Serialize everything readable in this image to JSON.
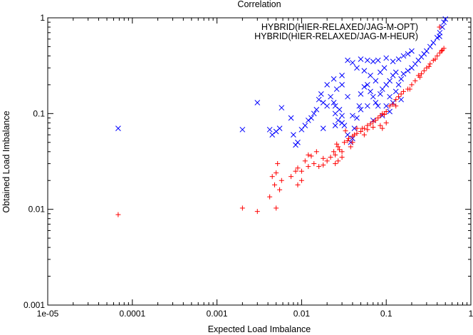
{
  "chart_data": {
    "type": "scatter",
    "title": "Correlation",
    "xlabel": "Expected Load Imbalance",
    "ylabel": "Obtained Load Imbalance",
    "xscale": "log",
    "yscale": "log",
    "xlim": [
      1e-05,
      1
    ],
    "ylim": [
      0.001,
      1
    ],
    "x_ticks": [
      1e-05,
      0.0001,
      0.001,
      0.01,
      0.1,
      1
    ],
    "x_tick_labels": [
      "1e-05",
      "0.0001",
      "0.001",
      "0.01",
      "0.1",
      "1"
    ],
    "y_ticks": [
      0.001,
      0.01,
      0.1,
      1
    ],
    "y_tick_labels": [
      "0.001",
      "0.01",
      "0.1",
      "1"
    ],
    "grid": false,
    "legend_position": "top-right",
    "series": [
      {
        "name": "HYBRID(HIER-RELAXED/JAG-M-OPT)",
        "marker": "plus",
        "color": "#ff0000",
        "points": [
          [
            6.8e-05,
            0.0088
          ],
          [
            0.002,
            0.0103
          ],
          [
            0.003,
            0.0095
          ],
          [
            0.005,
            0.0103
          ],
          [
            0.0042,
            0.0135
          ],
          [
            0.0055,
            0.016
          ],
          [
            0.0048,
            0.018
          ],
          [
            0.0058,
            0.02
          ],
          [
            0.005,
            0.024
          ],
          [
            0.0052,
            0.03
          ],
          [
            0.0045,
            0.022
          ],
          [
            0.009,
            0.018
          ],
          [
            0.01,
            0.02
          ],
          [
            0.0075,
            0.022
          ],
          [
            0.0085,
            0.025
          ],
          [
            0.01,
            0.025
          ],
          [
            0.009,
            0.027
          ],
          [
            0.012,
            0.028
          ],
          [
            0.011,
            0.032
          ],
          [
            0.013,
            0.036
          ],
          [
            0.012,
            0.037
          ],
          [
            0.015,
            0.04
          ],
          [
            0.018,
            0.029
          ],
          [
            0.02,
            0.032
          ],
          [
            0.022,
            0.035
          ],
          [
            0.025,
            0.037
          ],
          [
            0.024,
            0.04
          ],
          [
            0.028,
            0.042
          ],
          [
            0.03,
            0.04
          ],
          [
            0.027,
            0.045
          ],
          [
            0.026,
            0.048
          ],
          [
            0.032,
            0.05
          ],
          [
            0.035,
            0.052
          ],
          [
            0.036,
            0.055
          ],
          [
            0.04,
            0.058
          ],
          [
            0.042,
            0.06
          ],
          [
            0.045,
            0.062
          ],
          [
            0.05,
            0.065
          ],
          [
            0.052,
            0.07
          ],
          [
            0.055,
            0.07
          ],
          [
            0.06,
            0.075
          ],
          [
            0.065,
            0.078
          ],
          [
            0.07,
            0.082
          ],
          [
            0.075,
            0.085
          ],
          [
            0.08,
            0.09
          ],
          [
            0.085,
            0.095
          ],
          [
            0.09,
            0.1
          ],
          [
            0.1,
            0.105
          ],
          [
            0.11,
            0.12
          ],
          [
            0.12,
            0.125
          ],
          [
            0.13,
            0.14
          ],
          [
            0.14,
            0.15
          ],
          [
            0.15,
            0.16
          ],
          [
            0.16,
            0.17
          ],
          [
            0.18,
            0.18
          ],
          [
            0.2,
            0.2
          ],
          [
            0.22,
            0.22
          ],
          [
            0.24,
            0.25
          ],
          [
            0.26,
            0.26
          ],
          [
            0.28,
            0.28
          ],
          [
            0.3,
            0.3
          ],
          [
            0.33,
            0.33
          ],
          [
            0.36,
            0.36
          ],
          [
            0.4,
            0.4
          ],
          [
            0.43,
            0.43
          ],
          [
            0.46,
            0.46
          ],
          [
            0.48,
            0.48
          ],
          [
            0.45,
            0.45
          ],
          [
            0.38,
            0.37
          ],
          [
            0.32,
            0.31
          ],
          [
            0.25,
            0.24
          ],
          [
            0.19,
            0.18
          ],
          [
            0.13,
            0.12
          ],
          [
            0.095,
            0.098
          ],
          [
            0.06,
            0.068
          ],
          [
            0.033,
            0.066
          ],
          [
            0.045,
            0.07
          ],
          [
            0.025,
            0.03
          ],
          [
            0.018,
            0.034
          ],
          [
            0.016,
            0.028
          ],
          [
            0.014,
            0.03
          ],
          [
            0.09,
            0.07
          ],
          [
            0.085,
            0.075
          ],
          [
            0.1,
            0.08
          ],
          [
            0.07,
            0.072
          ],
          [
            0.055,
            0.06
          ],
          [
            0.03,
            0.035
          ],
          [
            0.027,
            0.032
          ],
          [
            0.04,
            0.05
          ],
          [
            0.038,
            0.045
          ]
        ]
      },
      {
        "name": "HYBRID(HIER-RELAXED/JAG-M-HEUR)",
        "marker": "cross",
        "color": "#0000ff",
        "points": [
          [
            6.8e-05,
            0.07
          ],
          [
            0.002,
            0.068
          ],
          [
            0.003,
            0.13
          ],
          [
            0.0042,
            0.068
          ],
          [
            0.0045,
            0.06
          ],
          [
            0.005,
            0.065
          ],
          [
            0.0055,
            0.07
          ],
          [
            0.0058,
            0.115
          ],
          [
            0.0075,
            0.09
          ],
          [
            0.008,
            0.06
          ],
          [
            0.0085,
            0.047
          ],
          [
            0.009,
            0.05
          ],
          [
            0.01,
            0.068
          ],
          [
            0.011,
            0.075
          ],
          [
            0.012,
            0.085
          ],
          [
            0.013,
            0.09
          ],
          [
            0.014,
            0.1
          ],
          [
            0.015,
            0.11
          ],
          [
            0.016,
            0.14
          ],
          [
            0.018,
            0.13
          ],
          [
            0.02,
            0.12
          ],
          [
            0.022,
            0.15
          ],
          [
            0.024,
            0.13
          ],
          [
            0.025,
            0.1
          ],
          [
            0.027,
            0.085
          ],
          [
            0.028,
            0.11
          ],
          [
            0.03,
            0.095
          ],
          [
            0.032,
            0.075
          ],
          [
            0.035,
            0.06
          ],
          [
            0.038,
            0.05
          ],
          [
            0.04,
            0.055
          ],
          [
            0.042,
            0.07
          ],
          [
            0.045,
            0.09
          ],
          [
            0.048,
            0.12
          ],
          [
            0.05,
            0.16
          ],
          [
            0.055,
            0.19
          ],
          [
            0.06,
            0.2
          ],
          [
            0.065,
            0.17
          ],
          [
            0.07,
            0.15
          ],
          [
            0.075,
            0.13
          ],
          [
            0.08,
            0.12
          ],
          [
            0.085,
            0.16
          ],
          [
            0.09,
            0.18
          ],
          [
            0.1,
            0.2
          ],
          [
            0.11,
            0.22
          ],
          [
            0.12,
            0.25
          ],
          [
            0.13,
            0.27
          ],
          [
            0.14,
            0.2
          ],
          [
            0.15,
            0.23
          ],
          [
            0.16,
            0.26
          ],
          [
            0.18,
            0.28
          ],
          [
            0.2,
            0.3
          ],
          [
            0.22,
            0.33
          ],
          [
            0.24,
            0.36
          ],
          [
            0.26,
            0.39
          ],
          [
            0.28,
            0.42
          ],
          [
            0.3,
            0.45
          ],
          [
            0.33,
            0.5
          ],
          [
            0.36,
            0.55
          ],
          [
            0.4,
            0.62
          ],
          [
            0.43,
            0.7
          ],
          [
            0.46,
            0.8
          ],
          [
            0.48,
            0.9
          ],
          [
            0.5,
            0.97
          ],
          [
            0.12,
            0.35
          ],
          [
            0.14,
            0.37
          ],
          [
            0.16,
            0.4
          ],
          [
            0.18,
            0.42
          ],
          [
            0.2,
            0.45
          ],
          [
            0.1,
            0.38
          ],
          [
            0.08,
            0.36
          ],
          [
            0.07,
            0.35
          ],
          [
            0.06,
            0.36
          ],
          [
            0.05,
            0.37
          ],
          [
            0.04,
            0.34
          ],
          [
            0.035,
            0.36
          ],
          [
            0.03,
            0.2
          ],
          [
            0.026,
            0.18
          ],
          [
            0.024,
            0.23
          ],
          [
            0.045,
            0.3
          ],
          [
            0.055,
            0.28
          ],
          [
            0.065,
            0.25
          ],
          [
            0.085,
            0.27
          ],
          [
            0.095,
            0.3
          ],
          [
            0.11,
            0.15
          ],
          [
            0.12,
            0.13
          ],
          [
            0.13,
            0.17
          ],
          [
            0.15,
            0.14
          ],
          [
            0.06,
            0.12
          ],
          [
            0.05,
            0.11
          ],
          [
            0.04,
            0.095
          ],
          [
            0.03,
            0.08
          ],
          [
            0.025,
            0.075
          ],
          [
            0.018,
            0.07
          ],
          [
            0.017,
            0.16
          ],
          [
            0.02,
            0.2
          ],
          [
            0.03,
            0.25
          ],
          [
            0.035,
            0.15
          ],
          [
            0.075,
            0.22
          ],
          [
            0.09,
            0.095
          ],
          [
            0.1,
            0.12
          ],
          [
            0.11,
            0.105
          ],
          [
            0.07,
            0.085
          ],
          [
            0.025,
            0.12
          ]
        ]
      }
    ]
  }
}
